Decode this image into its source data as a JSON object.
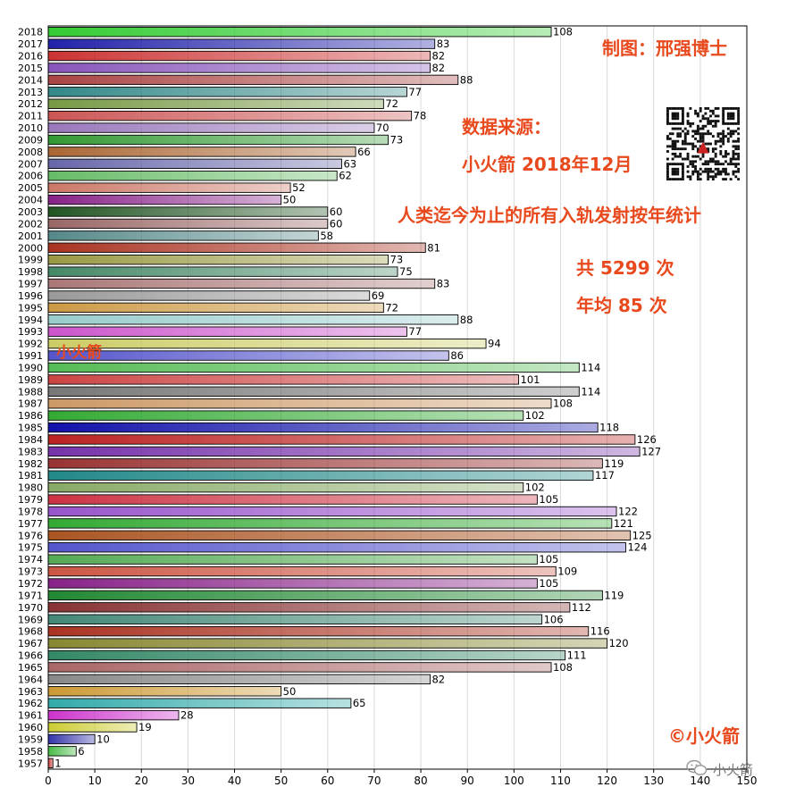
{
  "chart_data": {
    "type": "bar",
    "orientation": "horizontal",
    "title": "人类迄今为止的所有入轨发射按年统计",
    "xlim": [
      0,
      150
    ],
    "xticks": [
      "0",
      "10",
      "20",
      "30",
      "40",
      "50",
      "60",
      "70",
      "80",
      "90",
      "100",
      "110",
      "120",
      "130",
      "140",
      "150"
    ],
    "grid": "vertical",
    "categories": [
      "1957",
      "1958",
      "1959",
      "1960",
      "1961",
      "1962",
      "1963",
      "1964",
      "1965",
      "1966",
      "1967",
      "1968",
      "1969",
      "1970",
      "1971",
      "1972",
      "1973",
      "1974",
      "1975",
      "1976",
      "1977",
      "1978",
      "1979",
      "1980",
      "1981",
      "1982",
      "1983",
      "1984",
      "1985",
      "1986",
      "1987",
      "1988",
      "1989",
      "1990",
      "1991",
      "1992",
      "1993",
      "1994",
      "1995",
      "1996",
      "1997",
      "1998",
      "1999",
      "2000",
      "2001",
      "2002",
      "2003",
      "2004",
      "2005",
      "2006",
      "2007",
      "2008",
      "2009",
      "2010",
      "2011",
      "2012",
      "2013",
      "2014",
      "2015",
      "2016",
      "2017",
      "2018"
    ],
    "values": [
      1,
      6,
      10,
      19,
      28,
      65,
      50,
      82,
      108,
      111,
      120,
      116,
      106,
      112,
      119,
      105,
      109,
      105,
      124,
      125,
      121,
      122,
      105,
      102,
      117,
      119,
      127,
      126,
      118,
      102,
      108,
      114,
      101,
      114,
      86,
      94,
      77,
      88,
      72,
      69,
      83,
      75,
      73,
      81,
      58,
      60,
      60,
      50,
      52,
      62,
      63,
      66,
      73,
      70,
      78,
      72,
      77,
      88,
      82,
      82,
      83,
      108
    ],
    "colors": [
      "#cc3333",
      "#44bb44",
      "#3333aa",
      "#cccc33",
      "#cc33cc",
      "#33aaaa",
      "#cc9933",
      "#888888",
      "#aa6666",
      "#338866",
      "#888833",
      "#aa3322",
      "#448877",
      "#883333",
      "#228833",
      "#882288",
      "#cc5544",
      "#55aa55",
      "#5555cc",
      "#aa5522",
      "#33aa33",
      "#9955cc",
      "#cc3344",
      "#88aa66",
      "#228888",
      "#993333",
      "#7733aa",
      "#bb2222",
      "#1111aa",
      "#33aa33",
      "#cc9966",
      "#777777",
      "#cc4444",
      "#55bb55",
      "#5555cc",
      "#cccc66",
      "#cc55cc",
      "#99cccc",
      "#cc9944",
      "#999999",
      "#aa7777",
      "#448866",
      "#999944",
      "#aa3322",
      "#558888",
      "#996666",
      "#225522",
      "#882288",
      "#cc7766",
      "#66bb66",
      "#6666aa",
      "#aa6633",
      "#339933",
      "#9977bb",
      "#cc5555",
      "#779944",
      "#338888",
      "#aa4444",
      "#8855bb",
      "#cc3333",
      "#2222aa",
      "#33cc33"
    ]
  },
  "annotations": {
    "author": "制图：邢强博士",
    "source_line1": "数据来源：",
    "source_line2": "小火箭 2018年12月",
    "title": "人类迄今为止的所有入轨发射按年统计",
    "total": "共 5299 次",
    "average": "年均 85 次",
    "watermark": "小火箭",
    "copyright": "©小火箭",
    "wechat": "小火箭"
  },
  "icons": {
    "qr": "qr-code-icon",
    "wechat": "wechat-icon"
  }
}
